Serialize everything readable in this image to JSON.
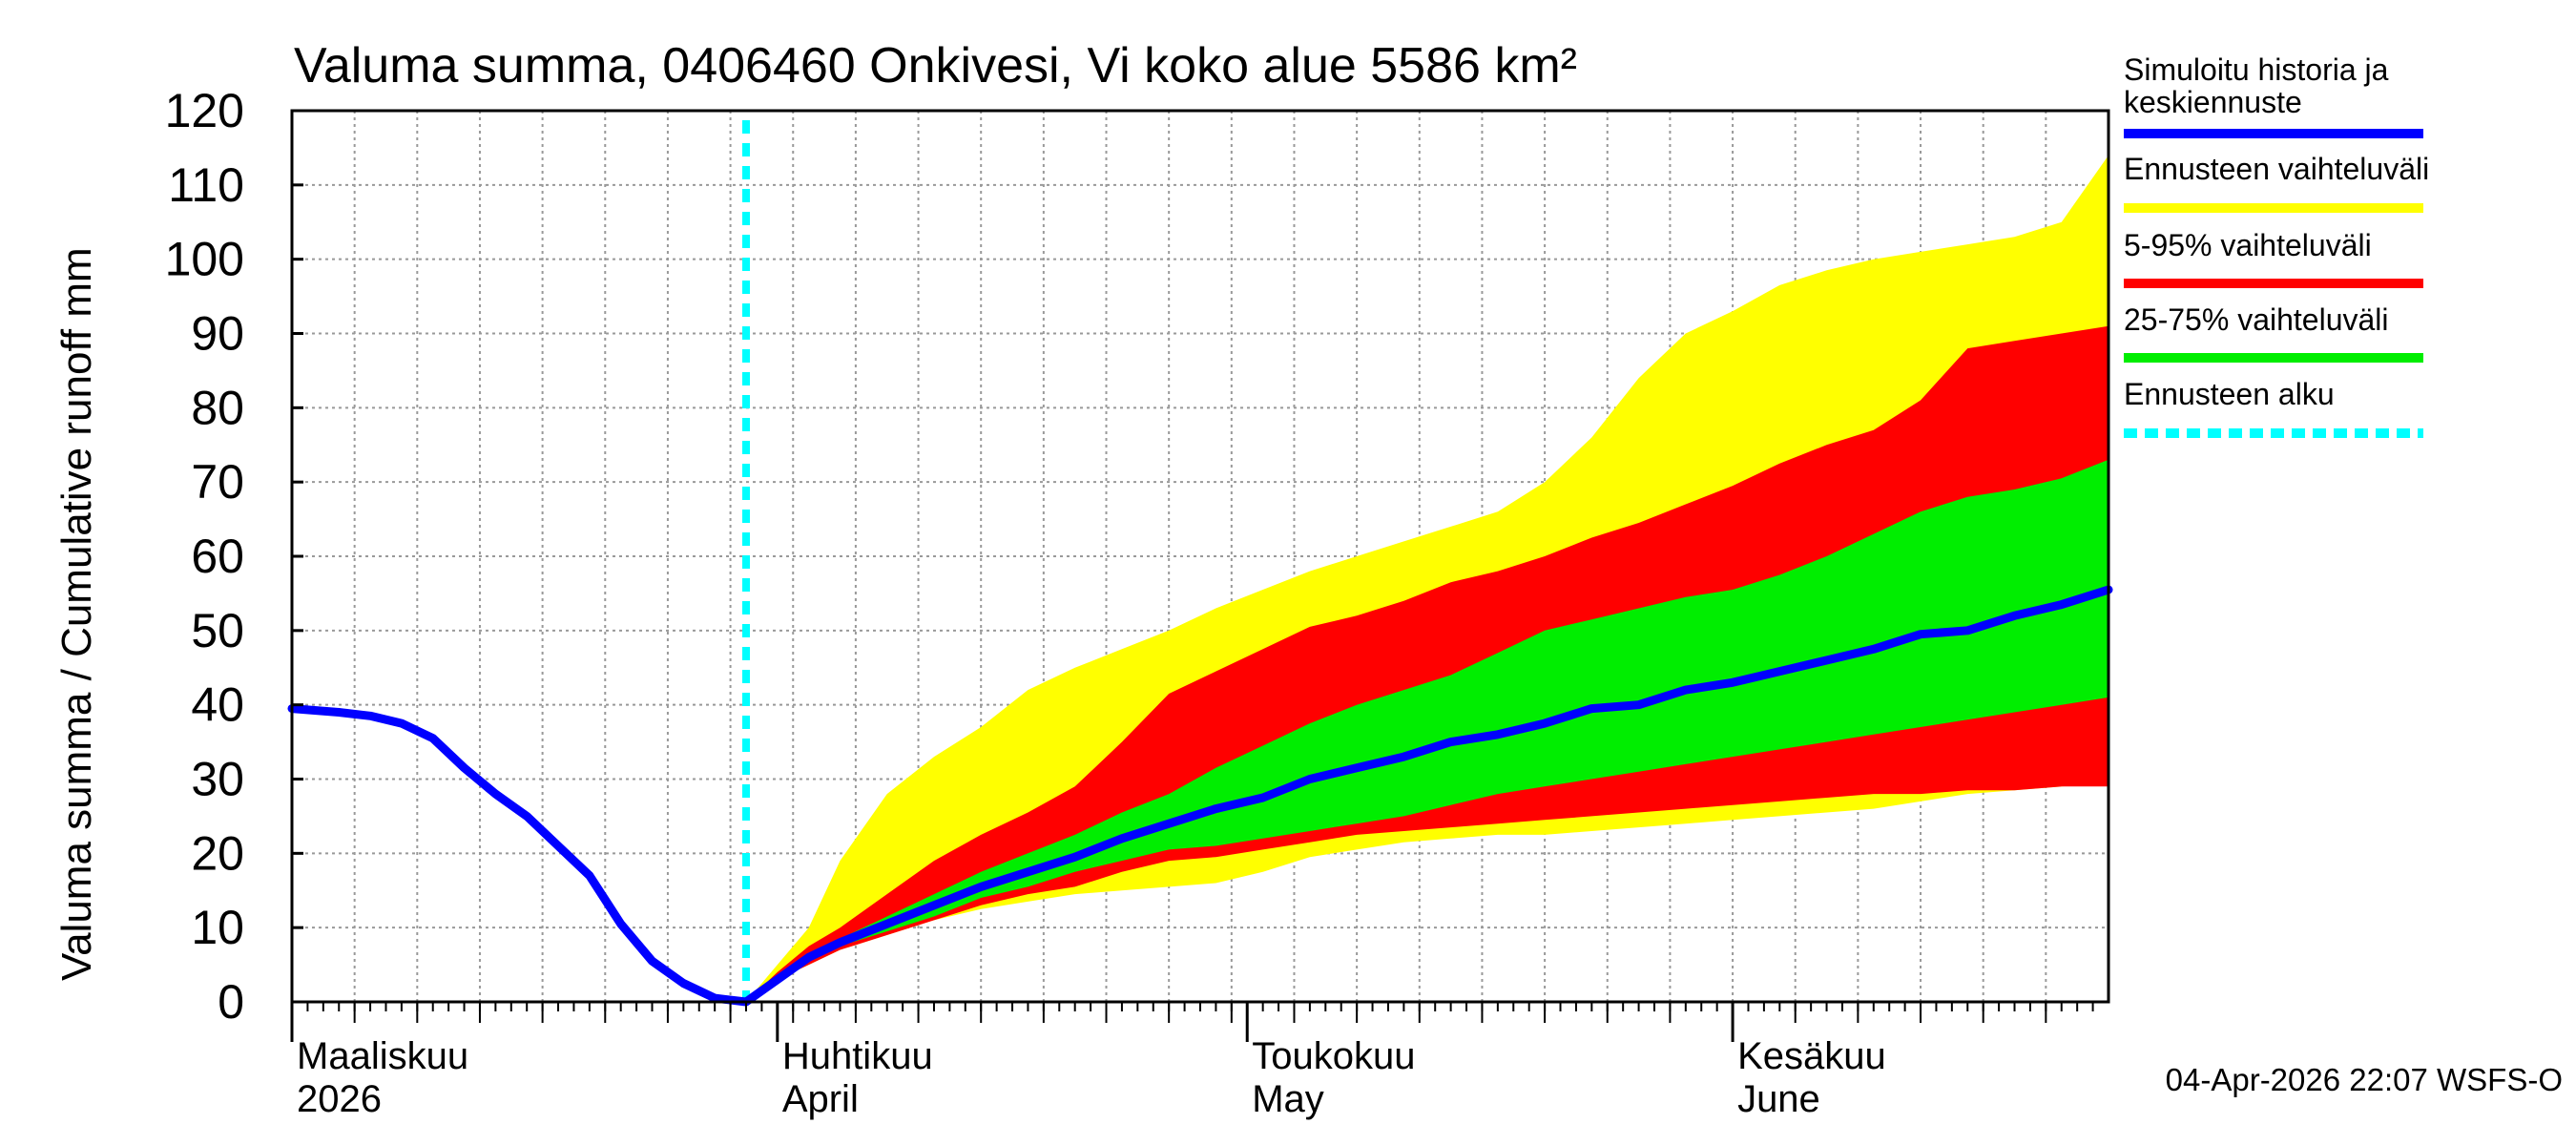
{
  "chart_data": {
    "type": "area",
    "title": "Valuma summa, 0406460 Onkivesi, Vi koko alue 5586 km²",
    "ylabel": "Valuma summa / Cumulative runoff    mm",
    "ylim": [
      0,
      120
    ],
    "yticks": [
      0,
      10,
      20,
      30,
      40,
      50,
      60,
      70,
      80,
      90,
      100,
      110,
      120
    ],
    "xlim": [
      0,
      116
    ],
    "x_unit": "days since 1 March 2026",
    "month_ticks": [
      {
        "day": 0,
        "fi": "Maaliskuu",
        "en": "2026"
      },
      {
        "day": 31,
        "fi": "Huhtikuu",
        "en": "April"
      },
      {
        "day": 61,
        "fi": "Toukokuu",
        "en": "May"
      },
      {
        "day": 92,
        "fi": "Kesäkuu",
        "en": "June"
      }
    ],
    "forecast_start_day": 29,
    "history": {
      "x": [
        0,
        3,
        5,
        7,
        9,
        11,
        13,
        15,
        17,
        19,
        21,
        23,
        25,
        27,
        29
      ],
      "y": [
        39.5,
        39,
        38.5,
        37.5,
        35.5,
        31.5,
        28,
        25,
        21,
        17,
        10.5,
        5.5,
        2.5,
        0.5,
        0
      ]
    },
    "forecast": {
      "x": [
        29,
        31,
        33,
        35,
        38,
        41,
        44,
        47,
        50,
        53,
        56,
        59,
        62,
        65,
        68,
        71,
        74,
        77,
        80,
        83,
        86,
        89,
        92,
        95,
        98,
        101,
        104,
        107,
        110,
        113,
        116
      ],
      "median": [
        0,
        3,
        6,
        8,
        10.5,
        13,
        15.5,
        17.5,
        19.5,
        22,
        24,
        26,
        27.5,
        30,
        31.5,
        33,
        35,
        36,
        37.5,
        39.5,
        40,
        42,
        43,
        44.5,
        46,
        47.5,
        49.5,
        50,
        52,
        53.5,
        55.5
      ],
      "p25": [
        0,
        3,
        5.5,
        7.5,
        9.5,
        11.5,
        14,
        15.5,
        17.5,
        19,
        20.5,
        21,
        22,
        23,
        24,
        25,
        26.5,
        28,
        29,
        30,
        31,
        32,
        33,
        34,
        35,
        36,
        37,
        38,
        39,
        40,
        41
      ],
      "p75": [
        0,
        3.5,
        6.5,
        8.5,
        11.5,
        14.5,
        17.5,
        20,
        22.5,
        25.5,
        28,
        31.5,
        34.5,
        37.5,
        40,
        42,
        44,
        47,
        50,
        51.5,
        53,
        54.5,
        55.5,
        57.5,
        60,
        63,
        66,
        68,
        69,
        70.5,
        73
      ],
      "p5": [
        0,
        3,
        5,
        7,
        9,
        11,
        13,
        14.5,
        15.5,
        17.5,
        19,
        19.5,
        20.5,
        21.5,
        22.5,
        23,
        23.5,
        24,
        24.5,
        25,
        25.5,
        26,
        26.5,
        27,
        27.5,
        28,
        28,
        28.5,
        28.5,
        29,
        29
      ],
      "p95": [
        0,
        4,
        7.5,
        10,
        14.5,
        19,
        22.5,
        25.5,
        29,
        35,
        41.5,
        44.5,
        47.5,
        50.5,
        52,
        54,
        56.5,
        58,
        60,
        62.5,
        64.5,
        67,
        69.5,
        72.5,
        75,
        77,
        81,
        88,
        89,
        90,
        91
      ],
      "min": [
        0,
        3,
        5,
        7,
        9,
        11,
        12.5,
        13.5,
        14.5,
        15,
        15.5,
        16,
        17.5,
        19.5,
        20.5,
        21.5,
        22,
        22.5,
        22.5,
        23,
        23.5,
        24,
        24.5,
        25,
        25.5,
        26,
        27,
        28,
        28.5,
        29,
        29.5
      ],
      "max": [
        0,
        5,
        10,
        19,
        28,
        33,
        37,
        42,
        45,
        47.5,
        50,
        53,
        55.5,
        58,
        60,
        62,
        64,
        66,
        70,
        76,
        84,
        90,
        93,
        96.5,
        98.5,
        100,
        101,
        102,
        103,
        105,
        114
      ]
    },
    "legend": [
      {
        "label": "Simuloitu historia ja keskiennuste",
        "line1": "Simuloitu historia ja",
        "line2": "keskiennuste",
        "color": "#0000ff",
        "style": "solid"
      },
      {
        "label": "Ennusteen vaihteluväli",
        "color": "#ffff00",
        "style": "solid"
      },
      {
        "label": "5-95% vaihteluväli",
        "color": "#ff0000",
        "style": "solid"
      },
      {
        "label": "25-75% vaihteluväli",
        "color": "#00ee00",
        "style": "solid"
      },
      {
        "label": "Ennusteen alku",
        "color": "#00ffff",
        "style": "dashed"
      }
    ],
    "legend_position": "right",
    "grid": true,
    "footer": "04-Apr-2026 22:07 WSFS-O"
  }
}
